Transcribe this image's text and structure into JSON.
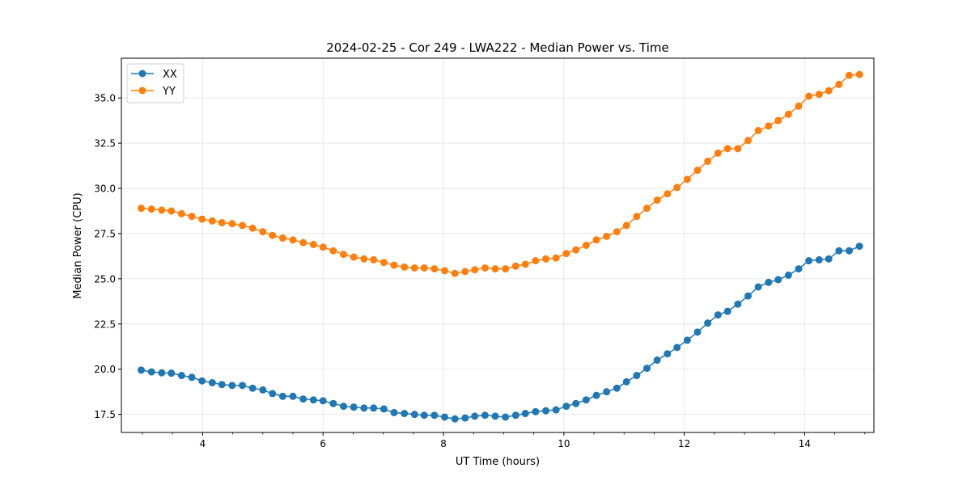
{
  "chart_data": {
    "type": "line",
    "title": "2024-02-25 - Cor 249 - LWA222 - Median Power vs. Time",
    "xlabel": "UT Time (hours)",
    "ylabel": "Median Power (CPU)",
    "xlim": [
      2.65,
      15.15
    ],
    "ylim": [
      16.5,
      37.2
    ],
    "xticks": [
      4,
      6,
      8,
      10,
      12,
      14
    ],
    "xtick_labels": [
      "4",
      "6",
      "8",
      "10",
      "12",
      "14"
    ],
    "xminor_step": 0.5,
    "yticks": [
      17.5,
      20.0,
      22.5,
      25.0,
      27.5,
      30.0,
      32.5,
      35.0
    ],
    "ytick_labels": [
      "17.5",
      "20.0",
      "22.5",
      "25.0",
      "27.5",
      "30.0",
      "32.5",
      "35.0"
    ],
    "grid": true,
    "legend": {
      "position": "top-left"
    },
    "x": [
      2.98,
      3.15,
      3.32,
      3.48,
      3.65,
      3.82,
      3.99,
      4.16,
      4.32,
      4.49,
      4.66,
      4.83,
      5.0,
      5.16,
      5.33,
      5.5,
      5.67,
      5.84,
      6.0,
      6.17,
      6.34,
      6.51,
      6.68,
      6.84,
      7.01,
      7.18,
      7.35,
      7.52,
      7.68,
      7.85,
      8.02,
      8.19,
      8.36,
      8.52,
      8.69,
      8.86,
      9.03,
      9.2,
      9.36,
      9.53,
      9.7,
      9.87,
      10.04,
      10.2,
      10.37,
      10.54,
      10.71,
      10.88,
      11.04,
      11.21,
      11.38,
      11.55,
      11.72,
      11.88,
      12.05,
      12.22,
      12.39,
      12.56,
      12.72,
      12.89,
      13.06,
      13.23,
      13.4,
      13.56,
      13.73,
      13.9,
      14.07,
      14.24,
      14.4,
      14.57,
      14.74,
      14.91
    ],
    "series": [
      {
        "name": "XX",
        "color": "#1f77b4",
        "values": [
          19.95,
          19.85,
          19.8,
          19.78,
          19.65,
          19.55,
          19.35,
          19.25,
          19.15,
          19.1,
          19.1,
          18.95,
          18.85,
          18.65,
          18.5,
          18.5,
          18.35,
          18.3,
          18.25,
          18.1,
          17.95,
          17.9,
          17.85,
          17.85,
          17.8,
          17.6,
          17.55,
          17.5,
          17.45,
          17.45,
          17.35,
          17.25,
          17.3,
          17.4,
          17.45,
          17.4,
          17.35,
          17.45,
          17.55,
          17.65,
          17.7,
          17.75,
          17.95,
          18.1,
          18.3,
          18.55,
          18.75,
          18.95,
          19.3,
          19.65,
          20.05,
          20.5,
          20.85,
          21.2,
          21.6,
          22.05,
          22.55,
          23.0,
          23.2,
          23.6,
          24.05,
          24.55,
          24.8,
          24.95,
          25.2,
          25.55,
          26.0,
          26.05,
          26.1,
          26.55,
          26.55,
          26.8
        ]
      },
      {
        "name": "YY",
        "color": "#ff7f0e",
        "values": [
          28.9,
          28.85,
          28.8,
          28.75,
          28.6,
          28.45,
          28.3,
          28.2,
          28.1,
          28.05,
          27.95,
          27.8,
          27.6,
          27.4,
          27.25,
          27.15,
          27.0,
          26.9,
          26.75,
          26.55,
          26.35,
          26.2,
          26.1,
          26.05,
          25.9,
          25.75,
          25.65,
          25.6,
          25.6,
          25.55,
          25.45,
          25.3,
          25.4,
          25.5,
          25.6,
          25.55,
          25.55,
          25.7,
          25.8,
          26.0,
          26.1,
          26.15,
          26.4,
          26.6,
          26.85,
          27.15,
          27.35,
          27.6,
          27.95,
          28.45,
          28.9,
          29.35,
          29.7,
          30.05,
          30.5,
          31.0,
          31.5,
          31.95,
          32.2,
          32.2,
          32.65,
          33.2,
          33.45,
          33.75,
          34.1,
          34.55,
          35.1,
          35.2,
          35.4,
          35.75,
          36.25,
          36.3
        ]
      }
    ]
  }
}
